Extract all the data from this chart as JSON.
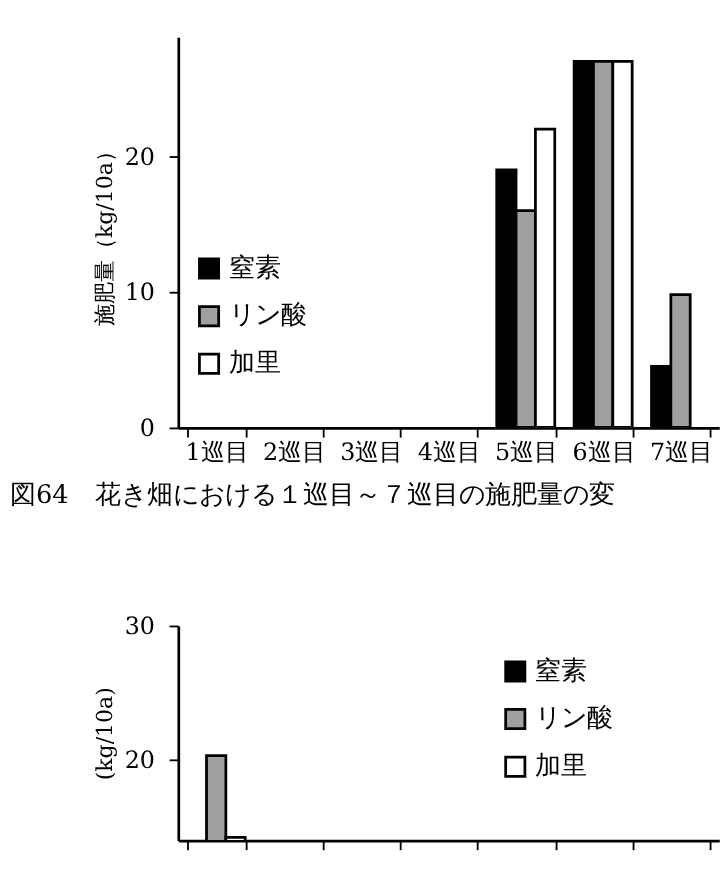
{
  "chart_data": [
    {
      "type": "bar",
      "ylabel": "施肥量（kg/10a）",
      "categories": [
        "1巡目",
        "2巡目",
        "3巡目",
        "4巡目",
        "5巡目",
        "6巡目",
        "7巡目"
      ],
      "series": [
        {
          "name": "窒素",
          "color": "#000000",
          "values": [
            0,
            0,
            0,
            0,
            19,
            27,
            4.5
          ]
        },
        {
          "name": "リン酸",
          "color": "#a0a0a0",
          "values": [
            0,
            0,
            0,
            0,
            16,
            27,
            9.8
          ]
        },
        {
          "name": "加里",
          "color": "#ffffff",
          "values": [
            0,
            0,
            0,
            0,
            22,
            27,
            0
          ]
        }
      ],
      "ylim": [
        0,
        28.8
      ],
      "yticks": [
        0,
        10,
        20
      ],
      "grid": false,
      "legend": "left",
      "annotations": [
        "図64　花き畑における１巡目～７巡目の施肥量の変"
      ]
    },
    {
      "type": "bar",
      "ylabel": "(kg/10a)",
      "categories": [
        null,
        null,
        null,
        null,
        null,
        null,
        null
      ],
      "series": [
        {
          "name": "窒素",
          "color": "#000000",
          "values": [
            null,
            null,
            null,
            null,
            null,
            null,
            null
          ]
        },
        {
          "name": "リン酸",
          "color": "#a0a0a0",
          "values": [
            20.3,
            null,
            null,
            null,
            null,
            null,
            null
          ]
        },
        {
          "name": "加里",
          "color": "#ffffff",
          "values": [
            14.2,
            null,
            null,
            null,
            null,
            null,
            null
          ]
        }
      ],
      "ylim": [
        14,
        30
      ],
      "yticks": [
        20,
        30
      ],
      "grid": false,
      "legend": "top right",
      "tick_labels": "y"
    }
  ]
}
